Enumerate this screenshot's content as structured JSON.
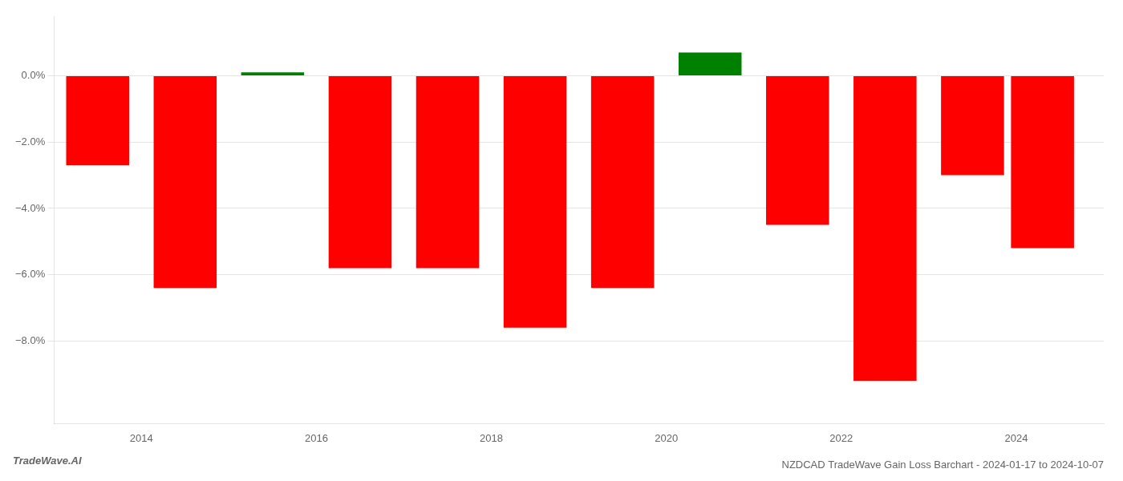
{
  "chart_data": {
    "type": "bar",
    "title": "NZDCAD TradeWave Gain Loss Barchart - 2024-01-17 to 2024-10-07",
    "annotations": [
      "TradeWave.AI"
    ],
    "x": [
      2013.5,
      2014.5,
      2015.5,
      2016.5,
      2017.5,
      2018.5,
      2019.5,
      2020.5,
      2021.5,
      2022.5,
      2023.5,
      2024.3
    ],
    "values": [
      -0.027,
      -0.064,
      0.001,
      -0.058,
      -0.058,
      -0.076,
      -0.064,
      0.007,
      -0.045,
      -0.092,
      -0.03,
      -0.052
    ],
    "colors": [
      "#ff0000",
      "#ff0000",
      "#008000",
      "#ff0000",
      "#ff0000",
      "#ff0000",
      "#ff0000",
      "#008000",
      "#ff0000",
      "#ff0000",
      "#ff0000",
      "#ff0000"
    ],
    "xlim": [
      2013.0,
      2025.0
    ],
    "xticks": [
      2014,
      2016,
      2018,
      2020,
      2022,
      2024
    ],
    "ylim": [
      -0.105,
      0.018
    ],
    "yticks": [
      {
        "value": 0.0,
        "label": "0.0%"
      },
      {
        "value": -0.02,
        "label": "−2.0%"
      },
      {
        "value": -0.04,
        "label": "−4.0%"
      },
      {
        "value": -0.06,
        "label": "−6.0%"
      },
      {
        "value": -0.08,
        "label": "−8.0%"
      }
    ],
    "grid": "y"
  }
}
